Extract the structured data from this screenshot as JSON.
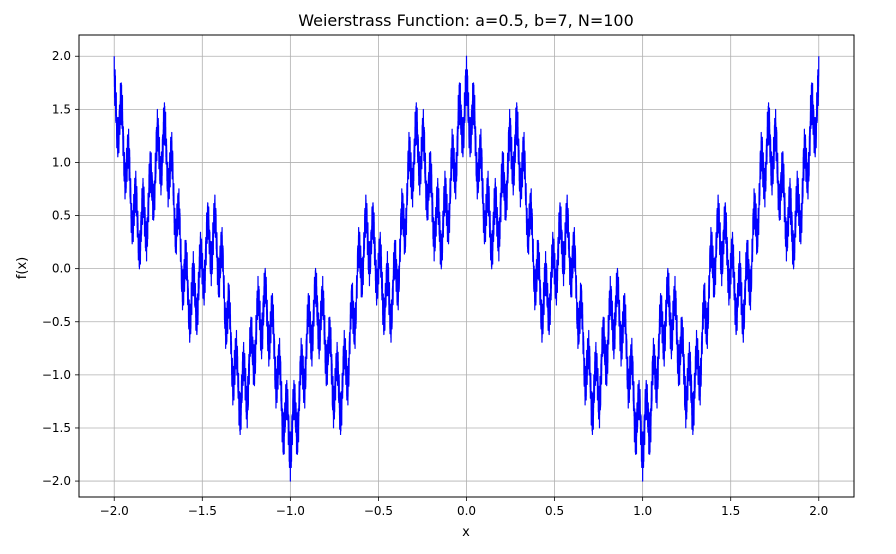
{
  "chart_data": {
    "type": "line",
    "title": "Weierstrass Function: a=0.5, b=7, N=100",
    "xlabel": "x",
    "ylabel": "f(x)",
    "xlim": [
      -2.2,
      2.2
    ],
    "ylim": [
      -2.15,
      2.2
    ],
    "xticks": [
      -2.0,
      -1.5,
      -1.0,
      -0.5,
      0.0,
      0.5,
      1.0,
      1.5,
      2.0
    ],
    "xtick_labels": [
      "−2.0",
      "−1.5",
      "−1.0",
      "−0.5",
      "0.0",
      "0.5",
      "1.0",
      "1.5",
      "2.0"
    ],
    "yticks": [
      -2.0,
      -1.5,
      -1.0,
      -0.5,
      0.0,
      0.5,
      1.0,
      1.5,
      2.0
    ],
    "ytick_labels": [
      "−2.0",
      "−1.5",
      "−1.0",
      "−0.5",
      "0.0",
      "0.5",
      "1.0",
      "1.5",
      "2.0"
    ],
    "grid": true,
    "series": [
      {
        "color": "#0000ff",
        "x_range": [
          -2.0,
          2.0
        ],
        "function": "sum_{n=0}^{N-1} a^n cos(b^n * pi * x)",
        "a": 0.5,
        "b": 7,
        "N": 100
      }
    ]
  }
}
